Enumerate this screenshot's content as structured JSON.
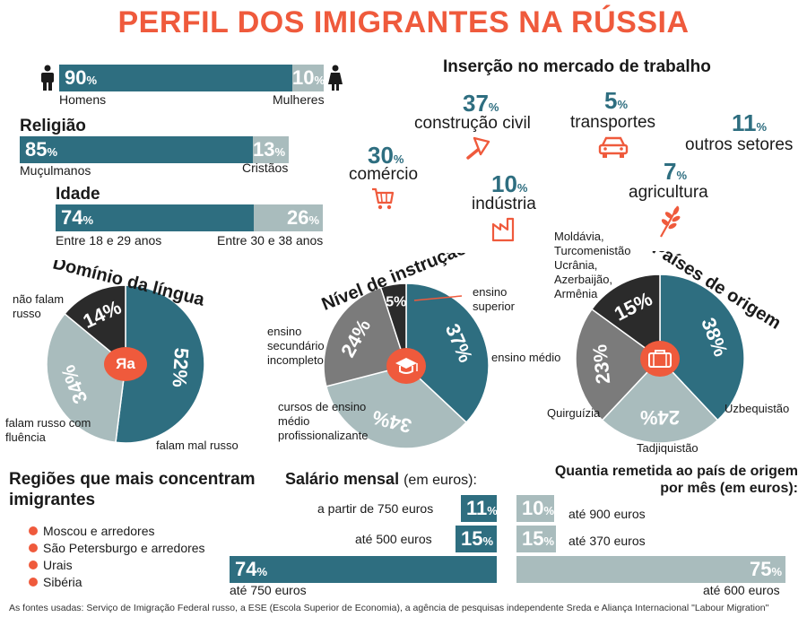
{
  "title": "PERFIL DOS IMIGRANTES NA RÚSSIA",
  "gender": {
    "men_pct": "90",
    "women_pct": "10",
    "men_label": "Homens",
    "women_label": "Mulheres",
    "men_value": 90,
    "women_value": 10
  },
  "religion": {
    "heading": "Religião",
    "a_pct": "85",
    "b_pct": "13",
    "a_label": "Muçulmanos",
    "b_label": "Cristãos",
    "a_value": 85,
    "b_value": 13
  },
  "age": {
    "heading": "Idade",
    "a_pct": "74",
    "b_pct": "26",
    "a_label": "Entre 18 e 29 anos",
    "b_label": "Entre 30 e 38 anos",
    "a_value": 74,
    "b_value": 26
  },
  "labour": {
    "heading": "Inserção no mercado de trabalho",
    "sectors": [
      {
        "pct": "37",
        "label": "construção civil",
        "icon": "trowel-icon"
      },
      {
        "pct": "5",
        "label": "transportes",
        "icon": "car-icon"
      },
      {
        "pct": "11",
        "label": "outros setores",
        "icon": ""
      },
      {
        "pct": "30",
        "label": "comércio",
        "icon": "shopping-cart-icon"
      },
      {
        "pct": "10",
        "label": "indústria",
        "icon": "factory-icon"
      },
      {
        "pct": "7",
        "label": "agricultura",
        "icon": "wheat-icon"
      }
    ]
  },
  "language": {
    "heading": "Domínio da língua",
    "slices": [
      {
        "pct": "52",
        "label": "falam mal russo"
      },
      {
        "pct": "34",
        "label": "falam russo com fluência"
      },
      {
        "pct": "14",
        "label": "não falam russo"
      }
    ],
    "center_icon_text": "Яa"
  },
  "education": {
    "heading": "Nível de instrução",
    "slices": [
      {
        "pct": "37",
        "label": "ensino médio"
      },
      {
        "pct": "34",
        "label": "cursos de ensino médio profissionalizante"
      },
      {
        "pct": "24",
        "label": "ensino secundário incompleto"
      },
      {
        "pct": "5",
        "label": "ensino superior"
      }
    ]
  },
  "origin": {
    "heading": "Países de origem",
    "slices": [
      {
        "pct": "38",
        "label": "Uzbequistão"
      },
      {
        "pct": "24",
        "label": "Tadjiquistão"
      },
      {
        "pct": "23",
        "label": "Quirguízia"
      },
      {
        "pct": "15",
        "label": "Moldávia, Turcomenistão Ucrânia, Azerbaijão, Armênia"
      }
    ]
  },
  "regions": {
    "heading": "Regiões que mais concentram imigrantes",
    "items": [
      "Moscou e arredores",
      "São Petersburgo e arredores",
      "Urais",
      "Sibéria"
    ]
  },
  "salary": {
    "heading": "Salário mensal",
    "unit": "(em euros):",
    "rows": [
      {
        "pct": "11",
        "label": "a partir de 750 euros",
        "value": 11
      },
      {
        "pct": "15",
        "label": "até 500 euros",
        "value": 15
      },
      {
        "pct": "74",
        "label": "até 750 euros",
        "value": 74
      }
    ]
  },
  "remit": {
    "heading_1": "Quantia remetida ao país de origem",
    "heading_2": "por mês (em euros):",
    "rows": [
      {
        "pct": "10",
        "label": "até 900 euros",
        "value": 10
      },
      {
        "pct": "15",
        "label": "até 370 euros",
        "value": 15
      },
      {
        "pct": "75",
        "label": "até 600 euros",
        "value": 75
      }
    ]
  },
  "footer": "As fontes usadas: Serviço de Imigração Federal russo, a ESE (Escola Superior de Economia), a agência de pesquisas independente Sreda e Aliança Internacional \"Labour Migration\"",
  "colors": {
    "teal": "#2e6e80",
    "gray": "#a9bcbd",
    "mid_gray": "#7b7b7b",
    "dark": "#2b2b2b",
    "accent": "#ef5a3c"
  },
  "chart_data": [
    {
      "type": "bar",
      "categories": [
        "Homens",
        "Mulheres"
      ],
      "values": [
        90,
        10
      ]
    },
    {
      "type": "bar",
      "title": "Religião",
      "categories": [
        "Muçulmanos",
        "Cristãos"
      ],
      "values": [
        85,
        13
      ]
    },
    {
      "type": "bar",
      "title": "Idade",
      "categories": [
        "Entre 18 e 29 anos",
        "Entre 30 e 38 anos"
      ],
      "values": [
        74,
        26
      ]
    },
    {
      "type": "pie",
      "title": "Domínio da língua",
      "categories": [
        "falam mal russo",
        "falam russo com fluência",
        "não falam russo"
      ],
      "values": [
        52,
        34,
        14
      ]
    },
    {
      "type": "pie",
      "title": "Nível de instrução",
      "categories": [
        "ensino médio",
        "cursos de ensino médio profissionalizante",
        "ensino secundário incompleto",
        "ensino superior"
      ],
      "values": [
        37,
        34,
        24,
        5
      ]
    },
    {
      "type": "pie",
      "title": "Países de origem",
      "categories": [
        "Uzbequistão",
        "Tadjiquistão",
        "Quirguízia",
        "Moldávia, Turcomenistão Ucrânia, Azerbaijão, Armênia"
      ],
      "values": [
        38,
        24,
        23,
        15
      ]
    },
    {
      "type": "bar",
      "title": "Salário mensal",
      "categories": [
        "a partir de 750 euros",
        "até 500 euros",
        "até 750 euros"
      ],
      "values": [
        11,
        15,
        74
      ]
    },
    {
      "type": "bar",
      "title": "Quantia remetida ao país de origem por mês (em euros):",
      "categories": [
        "até 900 euros",
        "até 370 euros",
        "até 600 euros"
      ],
      "values": [
        10,
        15,
        75
      ]
    }
  ]
}
